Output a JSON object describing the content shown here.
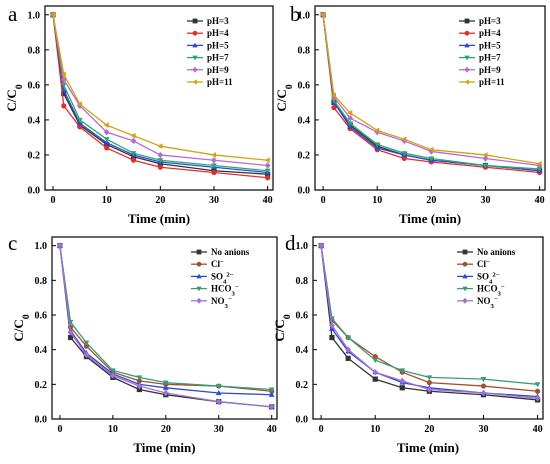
{
  "chart_data": [
    {
      "panel": "a",
      "type": "line",
      "xlabel": "Time (min)",
      "ylabel": "C/C0",
      "xlim": [
        -1.5,
        41
      ],
      "ylim": [
        0,
        1.05
      ],
      "xticks": [
        "0",
        "10",
        "20",
        "30",
        "40"
      ],
      "yticks": [
        "0.0",
        "0.2",
        "0.4",
        "0.6",
        "0.8",
        "1.0"
      ],
      "legend_position": "top-right",
      "x": [
        0,
        2,
        5,
        10,
        15,
        20,
        30,
        40
      ],
      "series": [
        {
          "name": "pH=3",
          "color": "#333333",
          "marker": "square",
          "values": [
            1.0,
            0.55,
            0.37,
            0.26,
            0.19,
            0.15,
            0.11,
            0.09
          ]
        },
        {
          "name": "pH=4",
          "color": "#e0302c",
          "marker": "circle",
          "values": [
            1.0,
            0.48,
            0.36,
            0.24,
            0.17,
            0.13,
            0.1,
            0.07
          ]
        },
        {
          "name": "pH=5",
          "color": "#2c4ad8",
          "marker": "triangle-up",
          "values": [
            1.0,
            0.57,
            0.38,
            0.27,
            0.2,
            0.16,
            0.13,
            0.1
          ]
        },
        {
          "name": "pH=7",
          "color": "#2aa870",
          "marker": "triangle-down",
          "values": [
            1.0,
            0.6,
            0.4,
            0.29,
            0.21,
            0.17,
            0.14,
            0.11
          ]
        },
        {
          "name": "pH=9",
          "color": "#b56bd6",
          "marker": "diamond",
          "values": [
            1.0,
            0.63,
            0.48,
            0.33,
            0.28,
            0.2,
            0.17,
            0.14
          ]
        },
        {
          "name": "pH=11",
          "color": "#d4a012",
          "marker": "triangle-left",
          "values": [
            1.0,
            0.66,
            0.49,
            0.37,
            0.31,
            0.25,
            0.2,
            0.17
          ]
        }
      ]
    },
    {
      "panel": "b",
      "type": "line",
      "xlabel": "Time (min)",
      "ylabel": "C/C0",
      "xlim": [
        -1.5,
        41
      ],
      "ylim": [
        0,
        1.05
      ],
      "xticks": [
        "0",
        "10",
        "20",
        "30",
        "40"
      ],
      "yticks": [
        "0.0",
        "0.2",
        "0.4",
        "0.6",
        "0.8",
        "1.0"
      ],
      "legend_position": "top-right",
      "x": [
        0,
        2,
        5,
        10,
        15,
        20,
        30,
        40
      ],
      "series": [
        {
          "name": "pH=3",
          "color": "#333333",
          "marker": "square",
          "values": [
            1.0,
            0.5,
            0.37,
            0.25,
            0.2,
            0.17,
            0.14,
            0.11
          ]
        },
        {
          "name": "pH=4",
          "color": "#e0302c",
          "marker": "circle",
          "values": [
            1.0,
            0.47,
            0.35,
            0.23,
            0.18,
            0.16,
            0.13,
            0.1
          ]
        },
        {
          "name": "pH=5",
          "color": "#2c4ad8",
          "marker": "triangle-up",
          "values": [
            1.0,
            0.5,
            0.36,
            0.24,
            0.2,
            0.17,
            0.14,
            0.11
          ]
        },
        {
          "name": "pH=7",
          "color": "#2aa870",
          "marker": "triangle-down",
          "values": [
            1.0,
            0.51,
            0.38,
            0.26,
            0.21,
            0.18,
            0.14,
            0.12
          ]
        },
        {
          "name": "pH=9",
          "color": "#b56bd6",
          "marker": "diamond",
          "values": [
            1.0,
            0.53,
            0.41,
            0.33,
            0.28,
            0.22,
            0.18,
            0.14
          ]
        },
        {
          "name": "pH=11",
          "color": "#d4a012",
          "marker": "triangle-left",
          "values": [
            1.0,
            0.54,
            0.44,
            0.34,
            0.29,
            0.23,
            0.2,
            0.15
          ]
        }
      ]
    },
    {
      "panel": "c",
      "type": "line",
      "xlabel": "Time (min)",
      "ylabel": "C/C0",
      "xlim": [
        -1.5,
        41
      ],
      "ylim": [
        0,
        1.05
      ],
      "xticks": [
        "0",
        "10",
        "20",
        "30",
        "40"
      ],
      "yticks": [
        "0.0",
        "0.2",
        "0.4",
        "0.6",
        "0.8",
        "1.0"
      ],
      "legend_position": "top-right",
      "x": [
        0,
        2,
        5,
        10,
        15,
        20,
        30,
        40
      ],
      "series": [
        {
          "name": "No anions",
          "color": "#333333",
          "marker": "square",
          "values": [
            1.0,
            0.47,
            0.36,
            0.24,
            0.17,
            0.14,
            0.1,
            0.07
          ]
        },
        {
          "name": "Cl⁻",
          "color": "#a0522d",
          "marker": "circle",
          "values": [
            1.0,
            0.53,
            0.42,
            0.27,
            0.22,
            0.2,
            0.19,
            0.16
          ]
        },
        {
          "name": "SO₄²⁻",
          "color": "#2c4ad8",
          "marker": "triangle-up",
          "values": [
            1.0,
            0.51,
            0.38,
            0.26,
            0.2,
            0.18,
            0.15,
            0.14
          ]
        },
        {
          "name": "HCO₃⁻",
          "color": "#3a9a7a",
          "marker": "triangle-down",
          "values": [
            1.0,
            0.56,
            0.44,
            0.28,
            0.24,
            0.21,
            0.19,
            0.17
          ]
        },
        {
          "name": "NO₃⁻",
          "color": "#a070d8",
          "marker": "diamond",
          "values": [
            1.0,
            0.5,
            0.37,
            0.25,
            0.19,
            0.15,
            0.1,
            0.07
          ]
        }
      ]
    },
    {
      "panel": "d",
      "type": "line",
      "xlabel": "Time (min)",
      "ylabel": "C/C0",
      "xlim": [
        -1.5,
        41
      ],
      "ylim": [
        0,
        1.05
      ],
      "xticks": [
        "0",
        "10",
        "20",
        "30",
        "40"
      ],
      "yticks": [
        "0.0",
        "0.2",
        "0.4",
        "0.6",
        "0.8",
        "1.0"
      ],
      "legend_position": "top-right",
      "x": [
        0,
        2,
        5,
        10,
        15,
        20,
        30,
        40
      ],
      "series": [
        {
          "name": "No anions",
          "color": "#333333",
          "marker": "square",
          "values": [
            1.0,
            0.47,
            0.35,
            0.23,
            0.18,
            0.16,
            0.14,
            0.11
          ]
        },
        {
          "name": "Cl⁻",
          "color": "#a0522d",
          "marker": "circle",
          "values": [
            1.0,
            0.57,
            0.47,
            0.36,
            0.27,
            0.21,
            0.19,
            0.16
          ]
        },
        {
          "name": "SO₄²⁻",
          "color": "#2c4ad8",
          "marker": "triangle-up",
          "values": [
            1.0,
            0.52,
            0.39,
            0.27,
            0.21,
            0.18,
            0.15,
            0.13
          ]
        },
        {
          "name": "HCO₃⁻",
          "color": "#3a9a7a",
          "marker": "triangle-down",
          "values": [
            1.0,
            0.58,
            0.47,
            0.34,
            0.28,
            0.24,
            0.23,
            0.2
          ]
        },
        {
          "name": "NO₃⁻",
          "color": "#a070d8",
          "marker": "diamond",
          "values": [
            1.0,
            0.54,
            0.4,
            0.27,
            0.22,
            0.17,
            0.15,
            0.12
          ]
        }
      ]
    }
  ]
}
